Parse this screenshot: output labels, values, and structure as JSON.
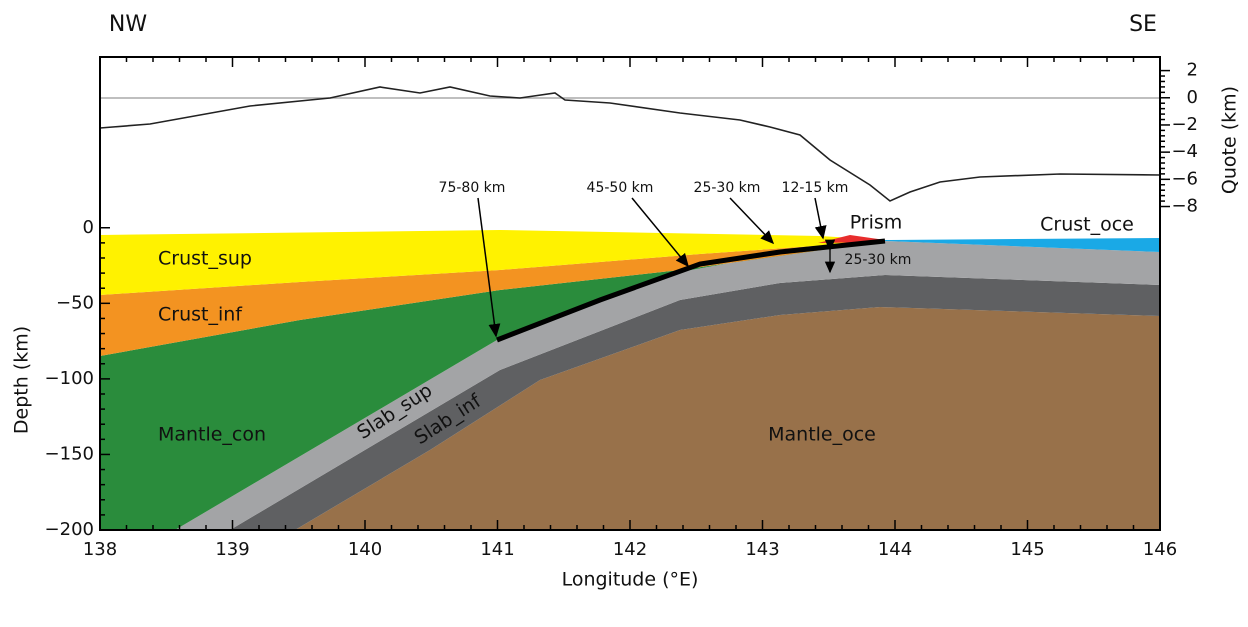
{
  "header": {
    "left": "NW",
    "right": "SE"
  },
  "x_axis": {
    "title": "Longitude (°E)",
    "lim": [
      138,
      146
    ],
    "ticks": [
      138,
      139,
      140,
      141,
      142,
      143,
      144,
      145,
      146
    ]
  },
  "depth_axis": {
    "title": "Depth (km)",
    "lim": [
      -200,
      113
    ],
    "ticks": [
      0,
      {
        "value": -50,
        "label": "−50"
      },
      {
        "value": -100,
        "label": "−100"
      },
      {
        "value": -150,
        "label": "−150"
      },
      {
        "value": -200,
        "label": "−200"
      }
    ]
  },
  "quote_axis": {
    "title": "Quote (km)",
    "lim": [
      -31.8,
      3
    ],
    "ticks": [
      2,
      0,
      {
        "value": -2,
        "label": "−2"
      },
      {
        "value": -4,
        "label": "−4"
      },
      {
        "value": -6,
        "label": "−6"
      },
      {
        "value": -8,
        "label": "−8"
      }
    ]
  },
  "layers": {
    "crust_sup": "Crust_sup",
    "crust_inf": "Crust_inf",
    "mantle_con": "Mantle_con",
    "slab_sup": "Slab_sup",
    "slab_inf": "Slab_inf",
    "mantle_oce": "Mantle_oce",
    "prism": "Prism",
    "crust_oce": "Crust_oce"
  },
  "annotations": {
    "a1": "75-80 km",
    "a2": "45-50 km",
    "a3": "25-30 km",
    "a4": "12-15 km",
    "thickness": "25-30 km"
  }
}
